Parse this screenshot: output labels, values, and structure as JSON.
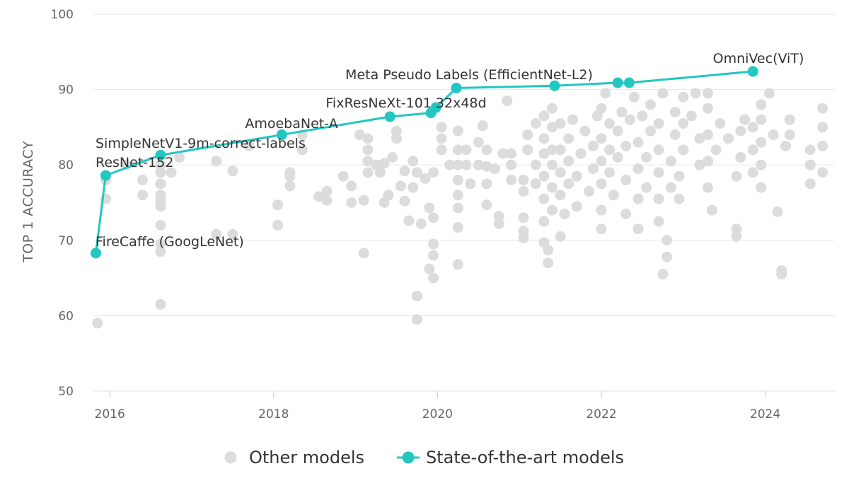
{
  "chart_data": {
    "type": "scatter",
    "title": "",
    "xlabel": "",
    "ylabel": "TOP 1 ACCURACY",
    "xlim": [
      2015.8,
      2024.85
    ],
    "ylim": [
      50,
      100
    ],
    "x_ticks": [
      "2016",
      "2018",
      "2020",
      "2022",
      "2024"
    ],
    "y_ticks": [
      "50",
      "60",
      "70",
      "80",
      "90",
      "100"
    ],
    "grid": "horizontal",
    "legend_position": "bottom-center",
    "colors": {
      "other": "#dcdcdc",
      "sota": "#21c7c0"
    },
    "legend": [
      {
        "name": "Other models",
        "marker": "circle",
        "color": "#dcdcdc"
      },
      {
        "name": "State-of-the-art models",
        "marker": "line-circle",
        "color": "#21c7c0"
      }
    ],
    "series": [
      {
        "name": "Other models",
        "points": [
          [
            2015.85,
            59
          ],
          [
            2015.95,
            75.5
          ],
          [
            2015.95,
            78
          ],
          [
            2016.2,
            80
          ],
          [
            2016.4,
            78
          ],
          [
            2016.4,
            76
          ],
          [
            2016.62,
            61.5
          ],
          [
            2016.62,
            68.5
          ],
          [
            2016.62,
            69.5
          ],
          [
            2016.62,
            72
          ],
          [
            2016.62,
            74.5
          ],
          [
            2016.62,
            75.3
          ],
          [
            2016.62,
            76
          ],
          [
            2016.62,
            77.5
          ],
          [
            2016.62,
            79
          ],
          [
            2016.62,
            80
          ],
          [
            2016.75,
            79
          ],
          [
            2016.85,
            81
          ],
          [
            2017.3,
            70.8
          ],
          [
            2017.3,
            80.5
          ],
          [
            2017.5,
            70.8
          ],
          [
            2017.5,
            79.2
          ],
          [
            2017.7,
            82.5
          ],
          [
            2018.05,
            72
          ],
          [
            2018.05,
            74.7
          ],
          [
            2018.2,
            77.2
          ],
          [
            2018.2,
            78.5
          ],
          [
            2018.2,
            79
          ],
          [
            2018.35,
            82
          ],
          [
            2018.35,
            84
          ],
          [
            2018.55,
            75.8
          ],
          [
            2018.65,
            75.3
          ],
          [
            2018.65,
            76.5
          ],
          [
            2018.85,
            78.5
          ],
          [
            2018.95,
            75
          ],
          [
            2018.95,
            77.2
          ],
          [
            2019.05,
            84
          ],
          [
            2019.1,
            68.3
          ],
          [
            2019.1,
            75.3
          ],
          [
            2019.15,
            79
          ],
          [
            2019.15,
            80.5
          ],
          [
            2019.15,
            82
          ],
          [
            2019.15,
            83.5
          ],
          [
            2019.25,
            80
          ],
          [
            2019.3,
            79
          ],
          [
            2019.35,
            75
          ],
          [
            2019.35,
            80.2
          ],
          [
            2019.4,
            76
          ],
          [
            2019.45,
            81
          ],
          [
            2019.5,
            83.5
          ],
          [
            2019.5,
            84.5
          ],
          [
            2019.55,
            77.2
          ],
          [
            2019.6,
            75.2
          ],
          [
            2019.6,
            79.2
          ],
          [
            2019.65,
            72.6
          ],
          [
            2019.7,
            77
          ],
          [
            2019.7,
            80.5
          ],
          [
            2019.75,
            59.5
          ],
          [
            2019.75,
            62.6
          ],
          [
            2019.75,
            79
          ],
          [
            2019.8,
            72.2
          ],
          [
            2019.85,
            78.2
          ],
          [
            2019.9,
            74.3
          ],
          [
            2019.9,
            66.2
          ],
          [
            2019.95,
            65
          ],
          [
            2019.95,
            68
          ],
          [
            2019.95,
            69.5
          ],
          [
            2019.95,
            73
          ],
          [
            2019.95,
            79
          ],
          [
            2020.05,
            82
          ],
          [
            2020.05,
            83.5
          ],
          [
            2020.05,
            85
          ],
          [
            2020.15,
            80
          ],
          [
            2020.25,
            66.8
          ],
          [
            2020.25,
            71.7
          ],
          [
            2020.25,
            74.3
          ],
          [
            2020.25,
            76
          ],
          [
            2020.25,
            78
          ],
          [
            2020.25,
            80
          ],
          [
            2020.25,
            82
          ],
          [
            2020.25,
            84.5
          ],
          [
            2020.35,
            80
          ],
          [
            2020.35,
            82
          ],
          [
            2020.4,
            77.5
          ],
          [
            2020.5,
            80
          ],
          [
            2020.5,
            83
          ],
          [
            2020.55,
            85.2
          ],
          [
            2020.6,
            74.7
          ],
          [
            2020.6,
            77.5
          ],
          [
            2020.6,
            79.8
          ],
          [
            2020.6,
            82
          ],
          [
            2020.7,
            79.5
          ],
          [
            2020.75,
            72.2
          ],
          [
            2020.75,
            73.2
          ],
          [
            2020.8,
            81.5
          ],
          [
            2020.85,
            88.5
          ],
          [
            2020.9,
            78
          ],
          [
            2020.9,
            80
          ],
          [
            2020.9,
            81.5
          ],
          [
            2021.05,
            70.3
          ],
          [
            2021.05,
            71.2
          ],
          [
            2021.05,
            73
          ],
          [
            2021.05,
            76.5
          ],
          [
            2021.05,
            78
          ],
          [
            2021.1,
            82
          ],
          [
            2021.1,
            84
          ],
          [
            2021.2,
            77.5
          ],
          [
            2021.2,
            80
          ],
          [
            2021.2,
            85.5
          ],
          [
            2021.3,
            69.7
          ],
          [
            2021.3,
            72.5
          ],
          [
            2021.3,
            75.5
          ],
          [
            2021.3,
            78.5
          ],
          [
            2021.3,
            81.5
          ],
          [
            2021.3,
            83.5
          ],
          [
            2021.3,
            86.5
          ],
          [
            2021.35,
            67
          ],
          [
            2021.35,
            68.7
          ],
          [
            2021.4,
            74
          ],
          [
            2021.4,
            77
          ],
          [
            2021.4,
            80
          ],
          [
            2021.4,
            82
          ],
          [
            2021.4,
            85
          ],
          [
            2021.4,
            87.5
          ],
          [
            2021.5,
            70.5
          ],
          [
            2021.5,
            76
          ],
          [
            2021.5,
            79
          ],
          [
            2021.5,
            82
          ],
          [
            2021.5,
            85.5
          ],
          [
            2021.55,
            73.5
          ],
          [
            2021.6,
            77.5
          ],
          [
            2021.6,
            80.5
          ],
          [
            2021.6,
            83.5
          ],
          [
            2021.65,
            86
          ],
          [
            2021.7,
            74.5
          ],
          [
            2021.7,
            78.5
          ],
          [
            2021.75,
            81.5
          ],
          [
            2021.8,
            84.5
          ],
          [
            2021.85,
            76.5
          ],
          [
            2021.9,
            79.5
          ],
          [
            2021.9,
            82.5
          ],
          [
            2021.95,
            86.5
          ],
          [
            2022.0,
            71.5
          ],
          [
            2022.0,
            74
          ],
          [
            2022.0,
            77.5
          ],
          [
            2022.0,
            80.5
          ],
          [
            2022.0,
            83.5
          ],
          [
            2022.0,
            87.5
          ],
          [
            2022.05,
            89.5
          ],
          [
            2022.1,
            79
          ],
          [
            2022.1,
            82
          ],
          [
            2022.1,
            85.5
          ],
          [
            2022.15,
            76
          ],
          [
            2022.2,
            81
          ],
          [
            2022.2,
            84.5
          ],
          [
            2022.25,
            87
          ],
          [
            2022.3,
            73.5
          ],
          [
            2022.3,
            78
          ],
          [
            2022.3,
            82.5
          ],
          [
            2022.35,
            86
          ],
          [
            2022.4,
            89
          ],
          [
            2022.45,
            71.5
          ],
          [
            2022.45,
            75.5
          ],
          [
            2022.45,
            79.5
          ],
          [
            2022.45,
            83
          ],
          [
            2022.5,
            86.5
          ],
          [
            2022.55,
            77
          ],
          [
            2022.55,
            81
          ],
          [
            2022.6,
            84.5
          ],
          [
            2022.6,
            88
          ],
          [
            2022.7,
            72.5
          ],
          [
            2022.7,
            75.5
          ],
          [
            2022.7,
            79
          ],
          [
            2022.7,
            82
          ],
          [
            2022.7,
            85.5
          ],
          [
            2022.75,
            89.5
          ],
          [
            2022.75,
            65.5
          ],
          [
            2022.8,
            67.8
          ],
          [
            2022.8,
            70
          ],
          [
            2022.85,
            77
          ],
          [
            2022.85,
            80.5
          ],
          [
            2022.9,
            84
          ],
          [
            2022.9,
            87
          ],
          [
            2022.95,
            75.5
          ],
          [
            2022.95,
            78.5
          ],
          [
            2023.0,
            82
          ],
          [
            2023.0,
            85.5
          ],
          [
            2023.0,
            89
          ],
          [
            2023.1,
            86.5
          ],
          [
            2023.15,
            89.5
          ],
          [
            2023.2,
            80
          ],
          [
            2023.2,
            83.5
          ],
          [
            2023.3,
            77
          ],
          [
            2023.3,
            80.5
          ],
          [
            2023.3,
            84
          ],
          [
            2023.3,
            87.5
          ],
          [
            2023.3,
            89.5
          ],
          [
            2023.35,
            74
          ],
          [
            2023.4,
            82
          ],
          [
            2023.45,
            85.5
          ],
          [
            2023.55,
            83.5
          ],
          [
            2023.65,
            70.5
          ],
          [
            2023.65,
            71.5
          ],
          [
            2023.65,
            78.5
          ],
          [
            2023.7,
            81
          ],
          [
            2023.7,
            84.5
          ],
          [
            2023.75,
            86
          ],
          [
            2023.85,
            79
          ],
          [
            2023.85,
            82
          ],
          [
            2023.85,
            85
          ],
          [
            2023.95,
            77
          ],
          [
            2023.95,
            80
          ],
          [
            2023.95,
            83
          ],
          [
            2023.95,
            86
          ],
          [
            2023.95,
            88
          ],
          [
            2024.05,
            89.5
          ],
          [
            2024.1,
            84
          ],
          [
            2024.15,
            73.8
          ],
          [
            2024.2,
            65.5
          ],
          [
            2024.2,
            66
          ],
          [
            2024.25,
            82.5
          ],
          [
            2024.3,
            84
          ],
          [
            2024.3,
            86
          ],
          [
            2024.55,
            77.5
          ],
          [
            2024.55,
            80
          ],
          [
            2024.55,
            82
          ],
          [
            2024.7,
            79
          ],
          [
            2024.7,
            82.5
          ],
          [
            2024.7,
            85
          ],
          [
            2024.7,
            87.5
          ]
        ]
      },
      {
        "name": "State-of-the-art models",
        "points": [
          {
            "x": 2015.83,
            "y": 68.3,
            "label": "FireCaffe (GoogLeNet)"
          },
          {
            "x": 2015.95,
            "y": 78.6,
            "label": "ResNet-152"
          },
          {
            "x": 2016.62,
            "y": 81.3,
            "label": "SimpleNetV1-9m-correct-labels"
          },
          {
            "x": 2018.1,
            "y": 84.0,
            "label": "AmoebaNet-A"
          },
          {
            "x": 2019.42,
            "y": 86.4,
            "label": ""
          },
          {
            "x": 2019.92,
            "y": 86.9,
            "label": ""
          },
          {
            "x": 2019.98,
            "y": 87.6,
            "label": "FixResNeXt-101 32x48d"
          },
          {
            "x": 2020.23,
            "y": 90.2,
            "label": "Meta Pseudo Labels (EfficientNet-L2)"
          },
          {
            "x": 2021.43,
            "y": 90.5,
            "label": ""
          },
          {
            "x": 2022.2,
            "y": 90.9,
            "label": ""
          },
          {
            "x": 2022.34,
            "y": 90.9,
            "label": ""
          },
          {
            "x": 2023.85,
            "y": 92.4,
            "label": "OmniVec(ViT)"
          }
        ]
      }
    ]
  }
}
